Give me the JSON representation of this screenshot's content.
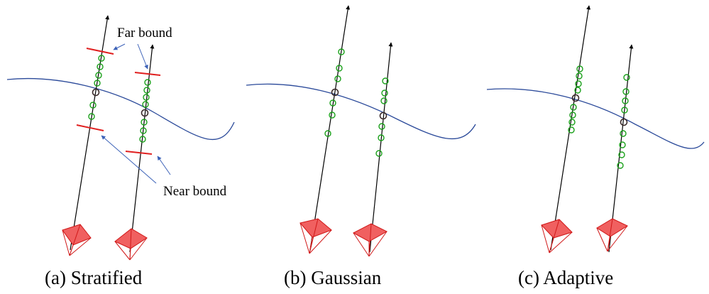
{
  "annotations": {
    "far_bound": "Far bound",
    "near_bound": "Near bound"
  },
  "panels": [
    {
      "caption": "(a) Stratified"
    },
    {
      "caption": "(b) Gaussian"
    },
    {
      "caption": "(c) Adaptive"
    }
  ],
  "colors": {
    "ray": "#000000",
    "surface": "#2b4a9a",
    "sample": "#1aa01a",
    "intersection": "#3a2a2a",
    "bound": "#e02020",
    "camera": "#f06060",
    "camera_edge": "#d01818",
    "arrow": "#3c62b8"
  }
}
